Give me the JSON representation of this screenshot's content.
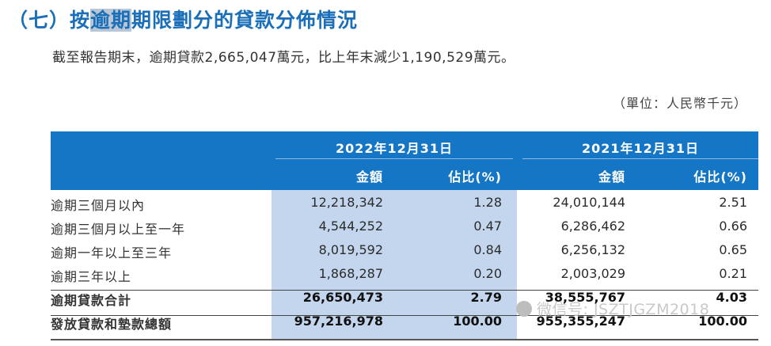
{
  "heading": {
    "prefix": "（七）按",
    "highlight": "逾期",
    "suffix": "期限劃分的貸款分佈情況"
  },
  "intro": "截至報告期末，逾期貸款2,665,047萬元，比上年末減少1,190,529萬元。",
  "unit": "（單位：人民幣千元）",
  "table": {
    "years": [
      "2022年12月31日",
      "2021年12月31日"
    ],
    "subheaders": [
      "金額",
      "佔比(%)",
      "金額",
      "佔比(%)"
    ],
    "rows": [
      {
        "label": "逾期三個月以內",
        "amount_2022": "12,218,342",
        "pct_2022": "1.28",
        "amount_2021": "24,010,144",
        "pct_2021": "2.51"
      },
      {
        "label": "逾期三個月以上至一年",
        "amount_2022": "4,544,252",
        "pct_2022": "0.47",
        "amount_2021": "6,286,462",
        "pct_2021": "0.66"
      },
      {
        "label": "逾期一年以上至三年",
        "amount_2022": "8,019,592",
        "pct_2022": "0.84",
        "amount_2021": "6,256,132",
        "pct_2021": "0.65"
      },
      {
        "label": "逾期三年以上",
        "amount_2022": "1,868,287",
        "pct_2022": "0.20",
        "amount_2021": "2,003,029",
        "pct_2021": "0.21"
      },
      {
        "label": "逾期貸款合計",
        "amount_2022": "26,650,473",
        "pct_2022": "2.79",
        "amount_2021": "38,555,767",
        "pct_2021": "4.03"
      },
      {
        "label": "發放貸款和墊款總額",
        "amount_2022": "957,216,978",
        "pct_2022": "100.00",
        "amount_2021": "955,355,247",
        "pct_2021": "100.00"
      }
    ]
  },
  "watermark": "微信号: JSZTJGZM2018",
  "colors": {
    "header_bg": "#1576c6",
    "shade": "#c3d6ee",
    "title": "#1a6fb8"
  }
}
